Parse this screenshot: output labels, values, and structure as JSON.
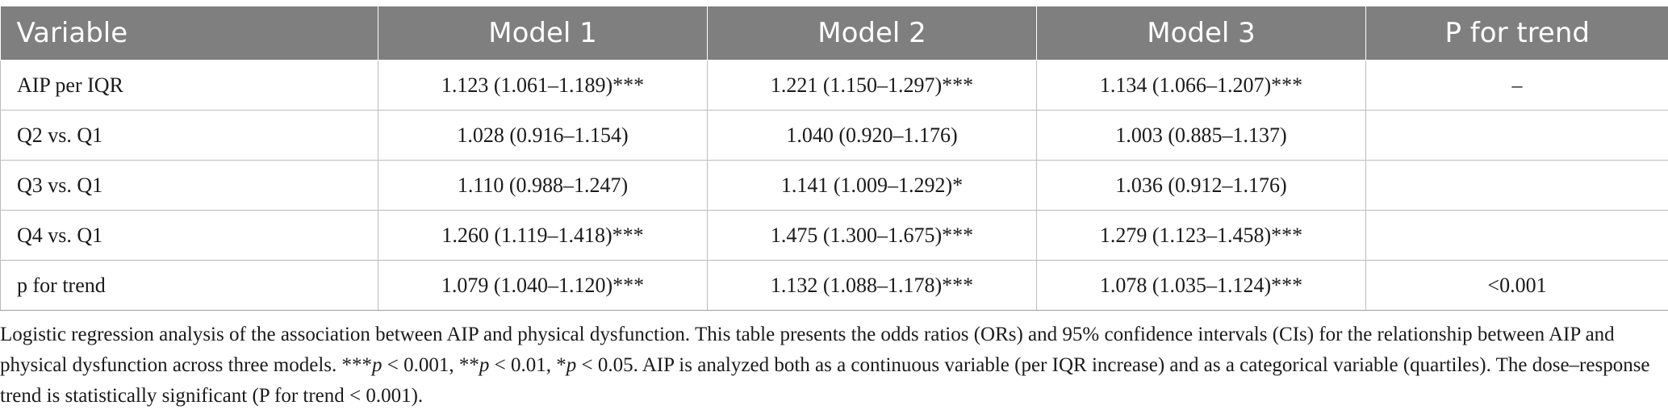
{
  "table": {
    "headers": [
      "Variable",
      "Model 1",
      "Model 2",
      "Model 3",
      "P for trend"
    ],
    "rows": [
      [
        "AIP per IQR",
        "1.123 (1.061–1.189)***",
        "1.221 (1.150–1.297)***",
        "1.134 (1.066–1.207)***",
        "–"
      ],
      [
        "Q2 vs. Q1",
        "1.028 (0.916–1.154)",
        "1.040 (0.920–1.176)",
        "1.003 (0.885–1.137)",
        ""
      ],
      [
        "Q3 vs. Q1",
        "1.110 (0.988–1.247)",
        "1.141 (1.009–1.292)*",
        "1.036 (0.912–1.176)",
        ""
      ],
      [
        "Q4 vs. Q1",
        "1.260 (1.119–1.418)***",
        "1.475 (1.300–1.675)***",
        "1.279 (1.123–1.458)***",
        ""
      ],
      [
        "p for trend",
        "1.079 (1.040–1.120)***",
        "1.132 (1.088–1.178)***",
        "1.078 (1.035–1.124)***",
        "<0.001"
      ]
    ]
  },
  "caption": {
    "part1": "Logistic regression analysis of the association between AIP and physical dysfunction. This table presents the odds ratios (ORs) and 95% confidence intervals (CIs) for the relationship between AIP and physical dysfunction across three models. ***",
    "p1": "p",
    "part2": " < 0.001, **",
    "p2": "p",
    "part3": " < 0.01, *",
    "p3": "p",
    "part4": " < 0.05. AIP is analyzed both as a continuous variable (per IQR increase) and as a categorical variable (quartiles). The dose–response trend is statistically significant (P for trend < 0.001)."
  }
}
